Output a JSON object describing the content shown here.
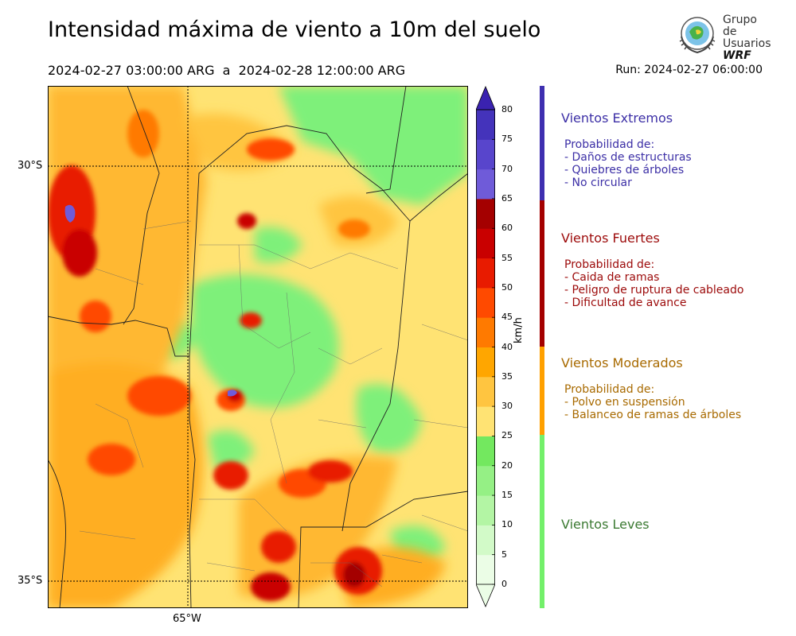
{
  "header": {
    "title": "Intensidad máxima de viento a 10m del suelo",
    "period": "2024-02-27 03:00:00 ARG  a  2024-02-28 12:00:00 ARG",
    "run": "Run: 2024-02-27 06:00:00"
  },
  "logo": {
    "line1": "Grupo de",
    "line2": "Usuarios",
    "line3": "WRF"
  },
  "map": {
    "lat_labels": [
      "30°S",
      "35°S"
    ],
    "lon_labels": [
      "65°W"
    ]
  },
  "colorbar": {
    "unit": "km/h",
    "ticks": [
      "0",
      "5",
      "10",
      "15",
      "20",
      "25",
      "30",
      "35",
      "40",
      "45",
      "50",
      "55",
      "60",
      "65",
      "70",
      "75",
      "80"
    ],
    "colors": [
      "#ebfde6",
      "#d2fac8",
      "#b3f5a4",
      "#95f085",
      "#73e85f",
      "#ffe373",
      "#ffc540",
      "#ffa600",
      "#ff7a00",
      "#ff4a00",
      "#e81b00",
      "#c90000",
      "#a40000",
      "#6f5bd9",
      "#5845cc",
      "#4433bb",
      "#3a22b0"
    ]
  },
  "categories": [
    {
      "title": "Vientos Extremos",
      "color": "#3c2fa6",
      "prob": "Probabilidad de:",
      "items": [
        "- Daños de estructuras",
        "- Quiebres de árboles",
        "- No circular"
      ]
    },
    {
      "title": "Vientos Fuertes",
      "color": "#9c0a0a",
      "prob": "Probabilidad de:",
      "items": [
        "- Caida de ramas",
        "- Peligro de ruptura de cableado",
        "- Dificultad de avance"
      ]
    },
    {
      "title": "Vientos Moderados",
      "color": "#a86a00",
      "prob": "Probabilidad de:",
      "items": [
        "- Polvo en suspensión",
        "- Balanceo de ramas de árboles"
      ]
    },
    {
      "title": "Vientos Leves",
      "color": "#3b7a32",
      "prob": "",
      "items": []
    }
  ],
  "band_colors": [
    "#3e2fb0",
    "#a40000",
    "#ffa000",
    "#73f06a"
  ]
}
